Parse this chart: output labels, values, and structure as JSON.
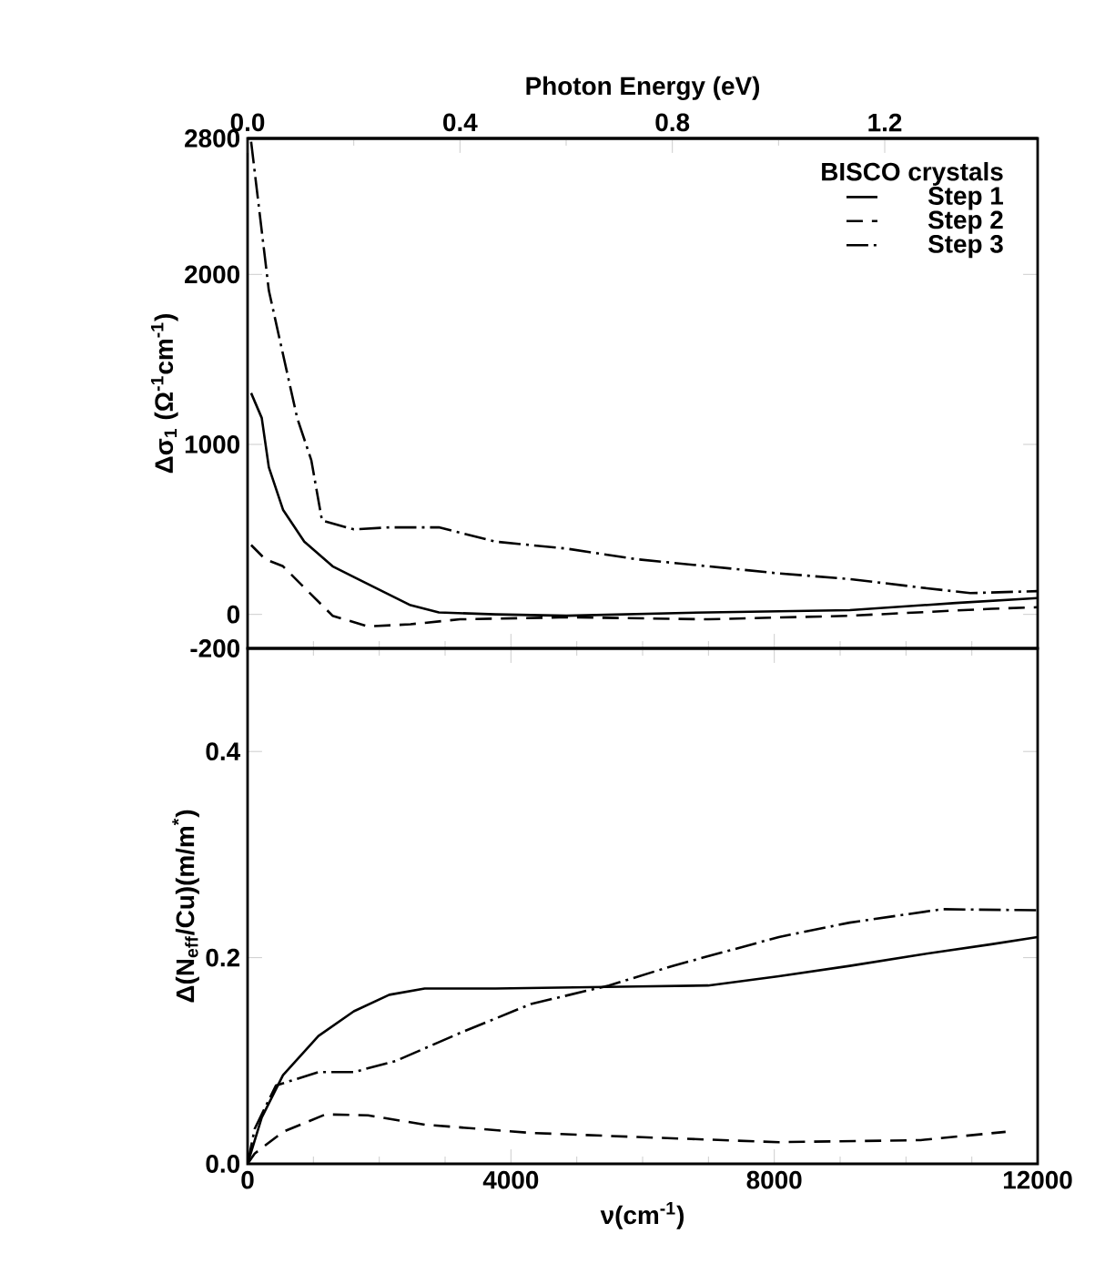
{
  "chart_data": [
    {
      "type": "line",
      "x2label": "Photon Energy (eV)",
      "ylabel": "Δσ$_{1}$  (Ω$^{-1}$cm$^{-1}$)",
      "legend_title": "BISCO crystals",
      "legend": "top right",
      "tick_labels": "y",
      "xlim": [
        0,
        12000
      ],
      "xticks": [
        {
          "value": 0,
          "label": null
        },
        {
          "value": 4000,
          "label": null
        },
        {
          "value": 8000,
          "label": null
        },
        {
          "value": 12000,
          "label": null
        }
      ],
      "x2lim": [
        0,
        1.488
      ],
      "x2ticks": [
        {
          "value": 0,
          "label": "0.0"
        },
        {
          "value": 0.4,
          "label": "0.4"
        },
        {
          "value": 0.8,
          "label": "0.8"
        },
        {
          "value": 1.2,
          "label": "1.2"
        }
      ],
      "ylim": [
        -200,
        2800
      ],
      "yticks": [
        -200,
        0,
        1000,
        2000,
        2800
      ],
      "series": [
        {
          "name": "Step 1",
          "color": "#000000",
          "line_style": "solid",
          "x": [
            54,
            215,
            323,
            538,
            861,
            1291,
            1614,
            2044,
            2475,
            2905,
            3766,
            4842,
            6994,
            9146,
            10760,
            12000
          ],
          "values": [
            1302,
            1156,
            865,
            616,
            428,
            283,
            220,
            137,
            54,
            12,
            0,
            -8,
            12,
            25,
            67,
            96
          ]
        },
        {
          "name": "Step 2",
          "color": "#000000",
          "line_style": "dashed",
          "x": [
            54,
            269,
            538,
            861,
            1291,
            1829,
            2475,
            3228,
            4842,
            6994,
            9146,
            11298,
            12000
          ],
          "values": [
            408,
            324,
            283,
            158,
            -8,
            -71,
            -58,
            -29,
            -17,
            -29,
            -8,
            33,
            42
          ]
        },
        {
          "name": "Step 3",
          "color": "#000000",
          "line_style": "dashdot",
          "x": [
            54,
            323,
            538,
            753,
            968,
            1130,
            1614,
            2152,
            2905,
            3766,
            4842,
            5918,
            6994,
            8070,
            9146,
            10222,
            10975,
            12000
          ],
          "values": [
            2780,
            1905,
            1530,
            1156,
            907,
            553,
            500,
            512,
            512,
            428,
            387,
            324,
            283,
            241,
            208,
            158,
            125,
            137
          ]
        }
      ]
    },
    {
      "type": "line",
      "xlabel": "ν(cm$^{-1}$)",
      "ylabel": "Δ(N$_{eff}$/Cu)(m/m$^{*}$)",
      "xlim": [
        0,
        12000
      ],
      "xticks": [
        0,
        4000,
        8000,
        12000
      ],
      "ylim": [
        0,
        0.5
      ],
      "yticks": [
        {
          "value": 0,
          "label": "0.0"
        },
        {
          "value": 0.2,
          "label": "0.2"
        },
        {
          "value": 0.4,
          "label": "0.4"
        }
      ],
      "series": [
        {
          "color": "#000000",
          "line_style": "solid",
          "x": [
            0,
            215,
            538,
            1076,
            1614,
            2152,
            2690,
            3766,
            5918,
            6994,
            8070,
            9146,
            10222,
            11298,
            12000
          ],
          "values": [
            0,
            0.045,
            0.086,
            0.124,
            0.148,
            0.164,
            0.17,
            0.17,
            0.172,
            0.173,
            0.182,
            0.192,
            0.203,
            0.213,
            0.22
          ]
        },
        {
          "color": "#000000",
          "line_style": "dashed",
          "x": [
            0,
            108,
            538,
            1184,
            1829,
            2690,
            4304,
            5918,
            8070,
            10222,
            11513
          ],
          "values": [
            0,
            0.01,
            0.031,
            0.048,
            0.047,
            0.038,
            0.03,
            0.026,
            0.021,
            0.023,
            0.031
          ]
        },
        {
          "color": "#000000",
          "line_style": "dashdot",
          "x": [
            0,
            108,
            430,
            1076,
            1614,
            2260,
            3228,
            4304,
            5488,
            6456,
            8070,
            9146,
            10545,
            12000
          ],
          "values": [
            0,
            0.034,
            0.076,
            0.089,
            0.089,
            0.1,
            0.127,
            0.155,
            0.173,
            0.192,
            0.22,
            0.234,
            0.247,
            0.246
          ]
        }
      ]
    }
  ]
}
